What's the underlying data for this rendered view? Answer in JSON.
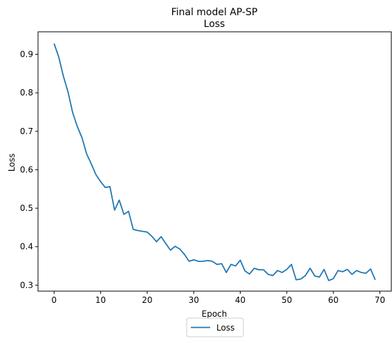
{
  "chart_data": {
    "type": "line",
    "title": "Final model AP-SP",
    "subtitle": "Loss",
    "xlabel": "Epoch",
    "ylabel": "Loss",
    "xlim": [
      -3.45,
      72.45
    ],
    "ylim": [
      0.2845,
      0.9585
    ],
    "xticks": [
      0,
      10,
      20,
      30,
      40,
      50,
      60,
      70
    ],
    "yticks": [
      0.3,
      0.4,
      0.5,
      0.6,
      0.7,
      0.8,
      0.9
    ],
    "ytick_labels": [
      "0.3",
      "0.4",
      "0.5",
      "0.6",
      "0.7",
      "0.8",
      "0.9"
    ],
    "grid": false,
    "legend_position": "below-center",
    "series": [
      {
        "name": "Loss",
        "color": "#1f77b4",
        "x": [
          0,
          1,
          2,
          3,
          4,
          5,
          6,
          7,
          8,
          9,
          10,
          11,
          12,
          13,
          14,
          15,
          16,
          17,
          18,
          19,
          20,
          21,
          22,
          23,
          24,
          25,
          26,
          27,
          28,
          29,
          30,
          31,
          32,
          33,
          34,
          35,
          36,
          37,
          38,
          39,
          40,
          41,
          42,
          43,
          44,
          45,
          46,
          47,
          48,
          49,
          50,
          51,
          52,
          53,
          54,
          55,
          56,
          57,
          58,
          59,
          60,
          61,
          62,
          63,
          64,
          65,
          66,
          67,
          68,
          69
        ],
        "values": [
          0.928,
          0.893,
          0.843,
          0.802,
          0.748,
          0.712,
          0.683,
          0.641,
          0.615,
          0.587,
          0.569,
          0.554,
          0.556,
          0.495,
          0.521,
          0.484,
          0.492,
          0.445,
          0.442,
          0.44,
          0.438,
          0.427,
          0.413,
          0.426,
          0.408,
          0.391,
          0.401,
          0.394,
          0.38,
          0.362,
          0.366,
          0.362,
          0.362,
          0.364,
          0.362,
          0.354,
          0.356,
          0.333,
          0.354,
          0.35,
          0.365,
          0.337,
          0.329,
          0.344,
          0.34,
          0.34,
          0.328,
          0.325,
          0.338,
          0.333,
          0.341,
          0.354,
          0.314,
          0.316,
          0.325,
          0.344,
          0.324,
          0.321,
          0.341,
          0.312,
          0.317,
          0.338,
          0.335,
          0.341,
          0.328,
          0.338,
          0.333,
          0.331,
          0.342,
          0.314
        ]
      }
    ]
  }
}
